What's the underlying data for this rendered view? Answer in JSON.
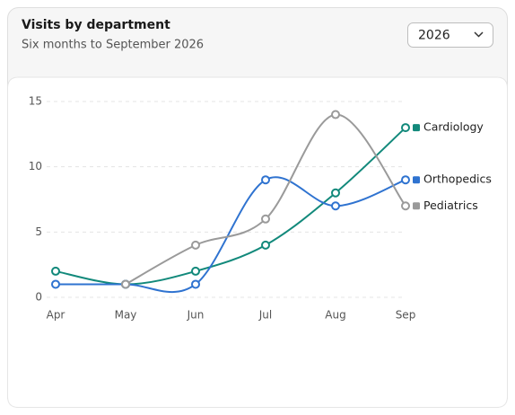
{
  "chart_data": {
    "type": "line",
    "title": "Visits by department",
    "subtitle": "Six months to September 2026",
    "selector": "2026",
    "categories": [
      "Apr",
      "May",
      "Jun",
      "Jul",
      "Aug",
      "Sep"
    ],
    "series": [
      {
        "name": "Cardiology",
        "color": "#12897b",
        "values": [
          2,
          1,
          2,
          4,
          8,
          13
        ]
      },
      {
        "name": "Orthopedics",
        "color": "#2f73d0",
        "values": [
          1,
          1,
          1,
          9,
          7,
          9
        ]
      },
      {
        "name": "Pediatrics",
        "color": "#9a9a9a",
        "values": [
          null,
          1,
          4,
          6,
          14,
          7
        ]
      }
    ],
    "ylim": [
      0,
      15
    ],
    "yticks": [
      0,
      5,
      10,
      15
    ],
    "grid": true
  }
}
